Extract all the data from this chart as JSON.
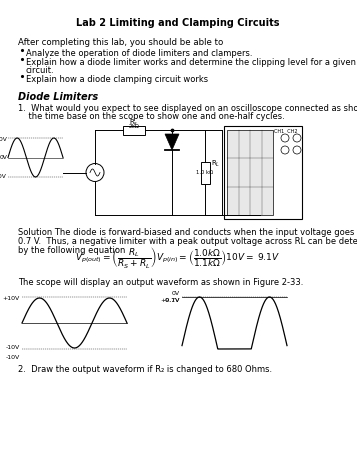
{
  "title": "Lab 2 Limiting and Clamping Circuits",
  "bg_color": "#ffffff",
  "intro_line": "After completing this lab, you should be able to",
  "bullet1": "Analyze the operation of diode limiters and clampers.",
  "bullet2a": "Explain how a diode limiter works and determine the clipping level for a given",
  "bullet2b": "circuit.",
  "bullet3": "Explain how a diode clamping circuit works",
  "section": "Diode Limiters",
  "q1a": "1.  What would you expect to see displayed on an oscilloscope connected as shown?  Set",
  "q1b": "    the time base on the scope to show one and one-half cycles.",
  "sol1": "Solution The diode is forward-biased and conducts when the input voltage goes below –",
  "sol2": "0.7 V.  Thus, a negative limiter with a peak output voltage across RL can be determined",
  "sol3": "by the following equation",
  "fig_cap": "The scope will display an output waveform as shown in Figure 2-33.",
  "q2": "2.  Draw the output waveform if R₂ is changed to 680 Ohms."
}
